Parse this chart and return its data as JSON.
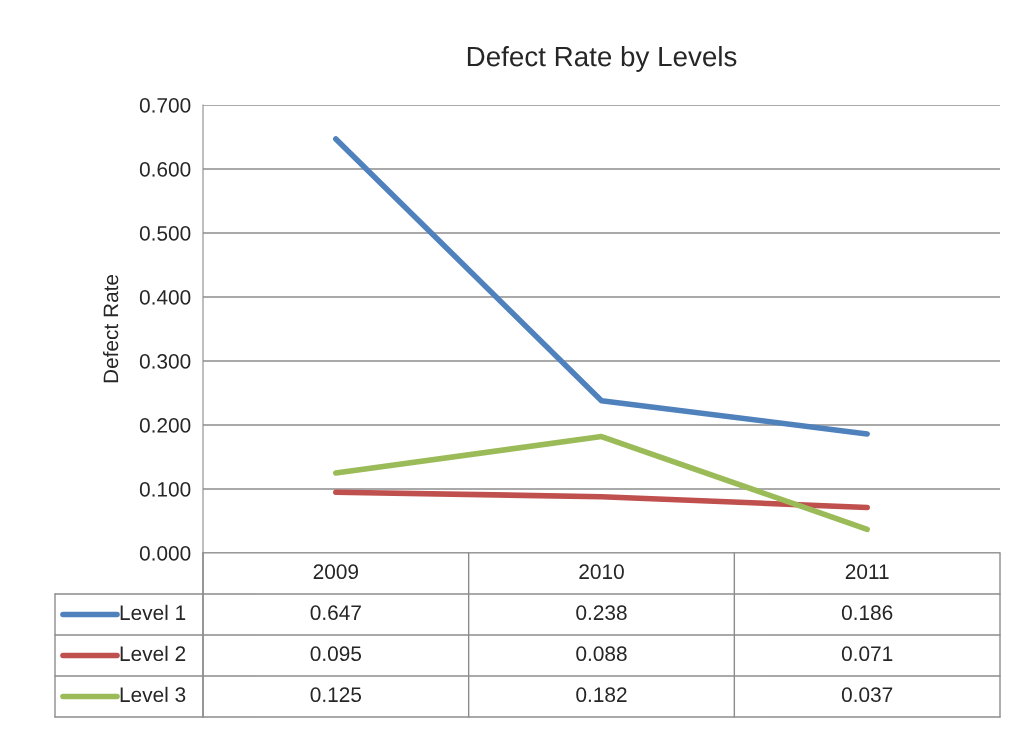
{
  "chart_data": {
    "type": "line",
    "title": "Defect Rate by Levels",
    "ylabel": "Defect Rate",
    "categories": [
      "2009",
      "2010",
      "2011"
    ],
    "series": [
      {
        "name": "Level 1",
        "color": "#4f81bd",
        "values": [
          0.647,
          0.238,
          0.186
        ]
      },
      {
        "name": "Level 2",
        "color": "#c0504d",
        "values": [
          0.095,
          0.088,
          0.071
        ]
      },
      {
        "name": "Level 3",
        "color": "#9bbb59",
        "values": [
          0.125,
          0.182,
          0.037
        ]
      }
    ],
    "ylim": [
      0,
      0.7
    ],
    "yticks": [
      {
        "value": 0,
        "label": "0.000"
      },
      {
        "value": 0.1,
        "label": "0.100"
      },
      {
        "value": 0.2,
        "label": "0.200"
      },
      {
        "value": 0.3,
        "label": "0.300"
      },
      {
        "value": 0.4,
        "label": "0.400"
      },
      {
        "value": 0.5,
        "label": "0.500"
      },
      {
        "value": 0.6,
        "label": "0.600"
      },
      {
        "value": 0.7,
        "label": "0.700"
      }
    ],
    "grid": "y",
    "legend": "bottom",
    "data_labels": true,
    "marker": "none",
    "line_style": "solid"
  }
}
